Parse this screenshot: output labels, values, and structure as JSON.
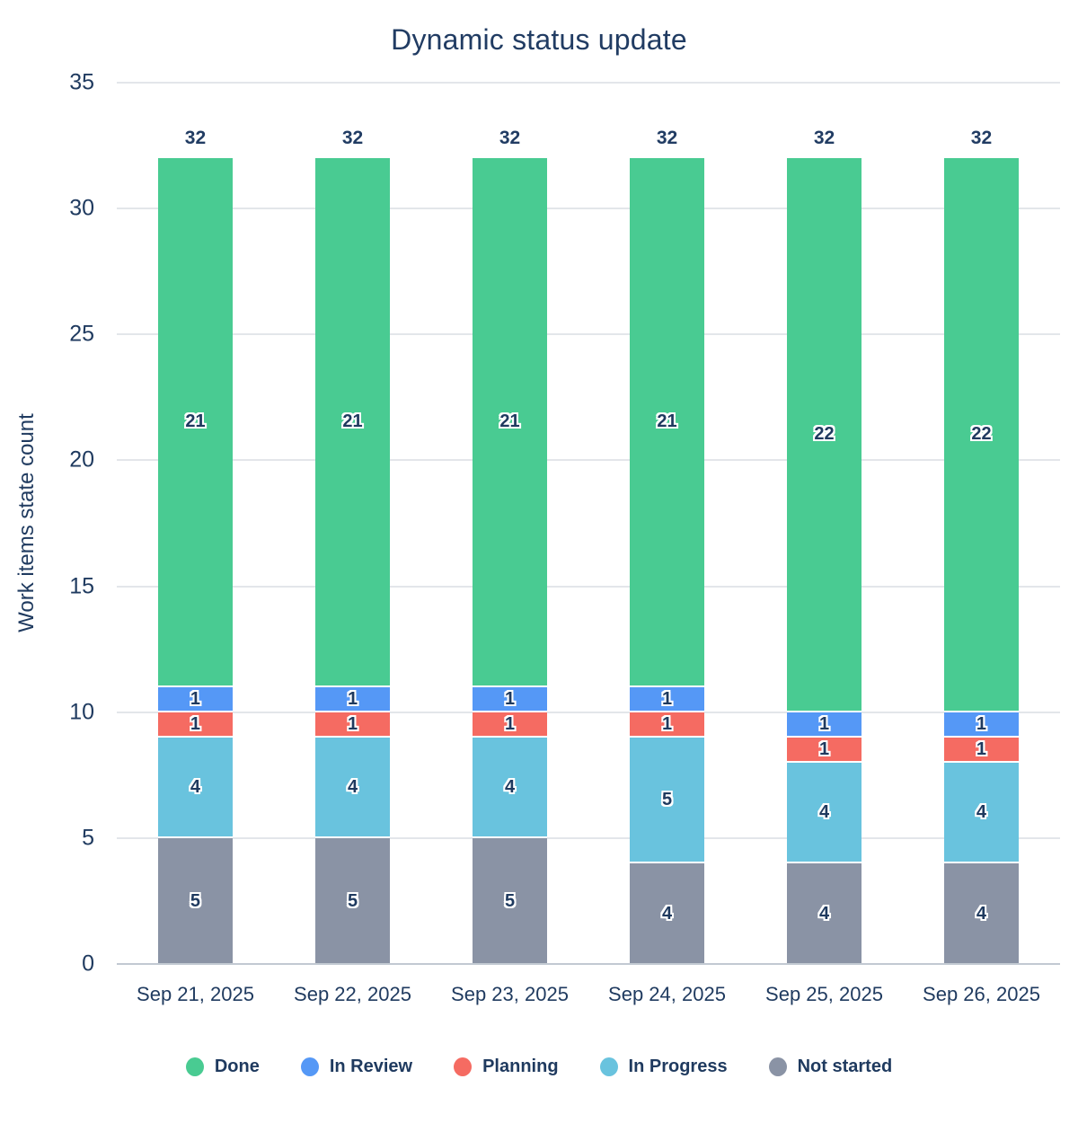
{
  "title": "Dynamic status update",
  "chart_data": {
    "type": "bar",
    "stacked": true,
    "title": "Dynamic status update",
    "ylabel": "Work items state count",
    "xlabel": "",
    "ylim": [
      0,
      35
    ],
    "yticks": [
      0,
      5,
      10,
      15,
      20,
      25,
      30,
      35
    ],
    "grid": true,
    "legend_position": "bottom",
    "categories": [
      "Sep 21, 2025",
      "Sep 22, 2025",
      "Sep 23, 2025",
      "Sep 24, 2025",
      "Sep 25, 2025",
      "Sep 26, 2025"
    ],
    "series": [
      {
        "name": "Not started",
        "color": "#8a93a5",
        "values": [
          5,
          5,
          5,
          4,
          4,
          4
        ]
      },
      {
        "name": "In Progress",
        "color": "#69c3de",
        "values": [
          4,
          4,
          4,
          5,
          4,
          4
        ]
      },
      {
        "name": "Planning",
        "color": "#f56b62",
        "values": [
          1,
          1,
          1,
          1,
          1,
          1
        ]
      },
      {
        "name": "In Review",
        "color": "#5598f6",
        "values": [
          1,
          1,
          1,
          1,
          1,
          1
        ]
      },
      {
        "name": "Done",
        "color": "#49cb92",
        "values": [
          21,
          21,
          21,
          21,
          22,
          22
        ]
      }
    ],
    "totals": [
      32,
      32,
      32,
      32,
      32,
      32
    ]
  },
  "legend": [
    {
      "label": "Done",
      "color": "#49cb92"
    },
    {
      "label": "In Review",
      "color": "#5598f6"
    },
    {
      "label": "Planning",
      "color": "#f56b62"
    },
    {
      "label": "In Progress",
      "color": "#69c3de"
    },
    {
      "label": "Not started",
      "color": "#8a93a5"
    }
  ],
  "colors": {
    "text": "#1f3a5f",
    "title": "#213c63",
    "gridline": "#e3e6ea",
    "baseline": "#c2c9d2",
    "background": "#ffffff"
  }
}
